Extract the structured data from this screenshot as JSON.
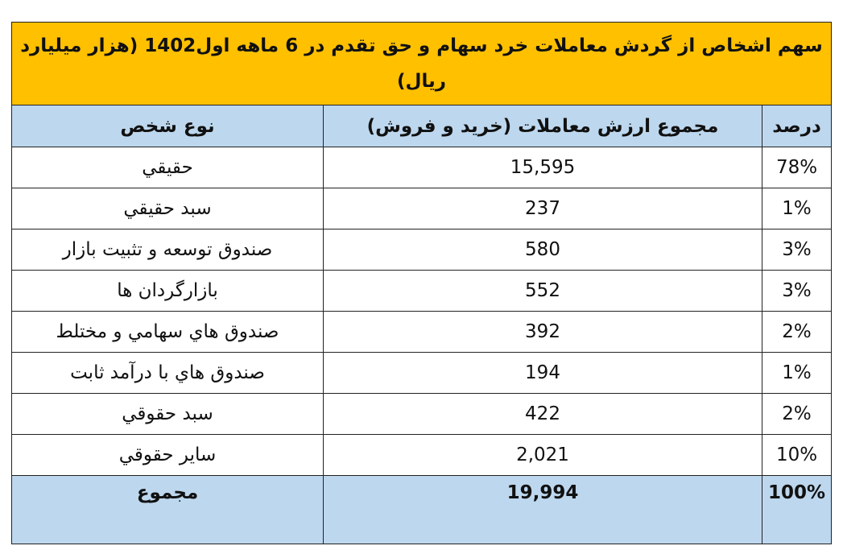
{
  "title": "سهم اشخاص از گردش معاملات خرد سهام و حق تقدم در 6 ماهه اول1402 (هزار میلیارد ریال)",
  "table": {
    "header": [
      "درصد",
      "مجموع ارزش معاملات (خريد و فروش)",
      "نوع شخص"
    ],
    "rows": [
      [
        "78%",
        "15,595",
        "حقيقي"
      ],
      [
        "1%",
        "237",
        "سبد حقيقي"
      ],
      [
        "3%",
        "580",
        "صندوق توسعه و تثبيت بازار"
      ],
      [
        "3%",
        "552",
        "بازارگردان ها"
      ],
      [
        "2%",
        "392",
        "صندوق هاي سهامي و مختلط"
      ],
      [
        "1%",
        "194",
        "صندوق هاي با درآمد ثابت"
      ],
      [
        "2%",
        "422",
        "سبد حقوقي"
      ],
      [
        "10%",
        "2,021",
        "ساير حقوقي"
      ]
    ],
    "total": [
      "100%",
      "19,994",
      "مجموع"
    ]
  }
}
